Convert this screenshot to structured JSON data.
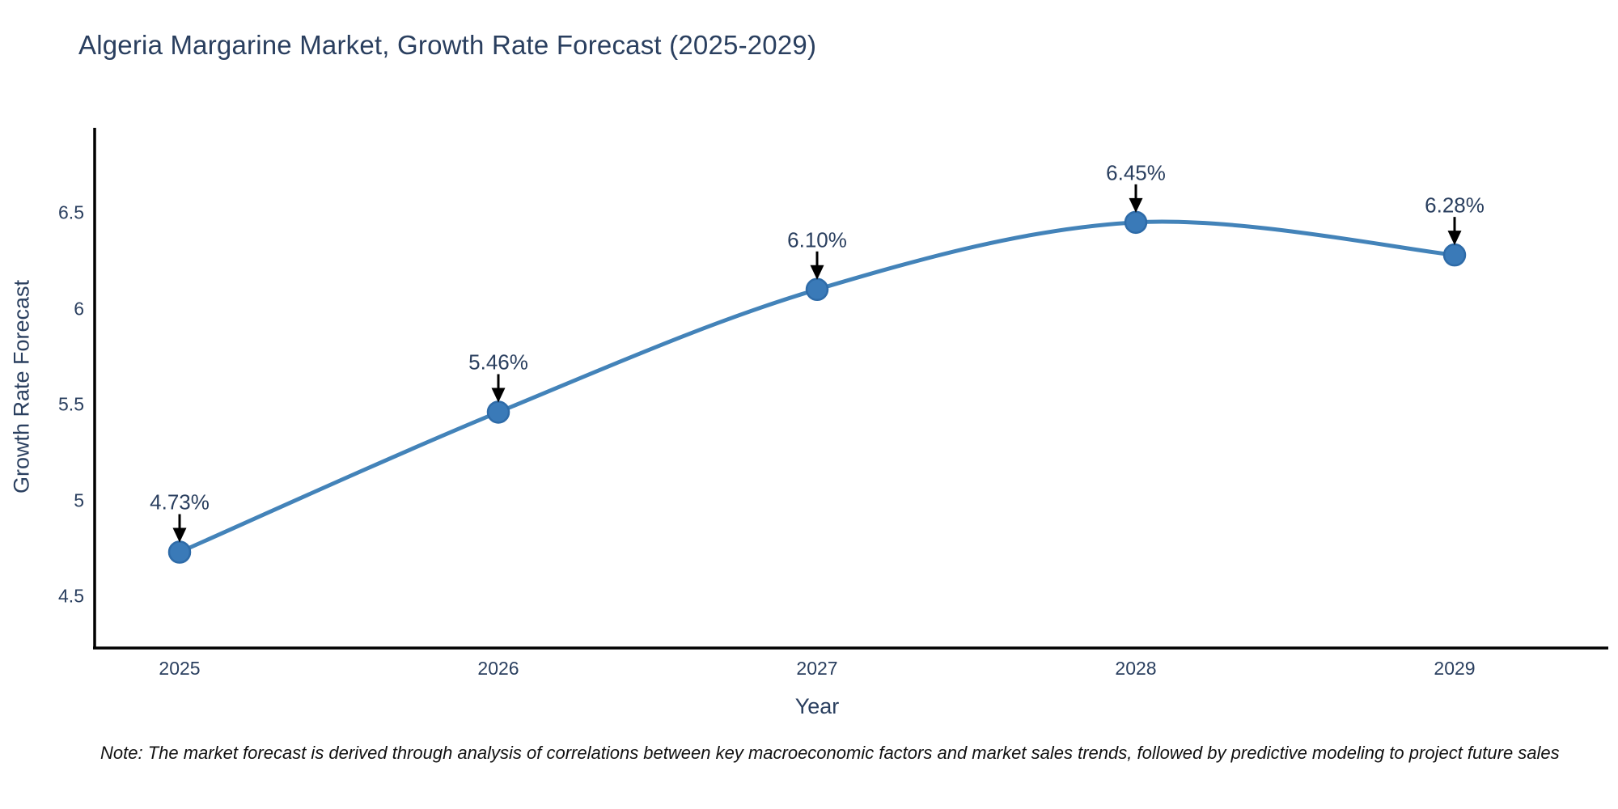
{
  "title": "Algeria Margarine Market, Growth Rate Forecast (2025-2029)",
  "note": "Note: The market forecast is derived through analysis of correlations between key macroeconomic factors and market sales trends, followed by predictive modeling to project future sales",
  "chart_data": {
    "type": "line",
    "line_shape": "spline",
    "title": "Algeria Margarine Market, Growth Rate Forecast (2025-2029)",
    "xlabel": "Year",
    "ylabel": "Growth Rate Forecast",
    "categories": [
      2025,
      2026,
      2027,
      2028,
      2029
    ],
    "x_tick_labels": [
      "2025",
      "2026",
      "2027",
      "2028",
      "2029"
    ],
    "values": [
      4.73,
      5.46,
      6.1,
      6.45,
      6.28
    ],
    "point_labels": [
      "4.73%",
      "5.46%",
      "6.10%",
      "6.45%",
      "6.28%"
    ],
    "y_ticks": [
      4.5,
      5.0,
      5.5,
      6.0,
      6.5
    ],
    "y_tick_labels": [
      "4.5",
      "5",
      "5.5",
      "6",
      "6.5"
    ],
    "ylim": [
      4.23,
      6.94
    ],
    "grid": false,
    "legend": "none",
    "colors": {
      "line": "#4383b9",
      "marker_fill": "#3a7ab8",
      "marker_edge": "#2e6ba8",
      "axis": "#000000",
      "text": "#2a3f5f",
      "annotation_arrow": "#000000",
      "background": "#ffffff"
    }
  }
}
